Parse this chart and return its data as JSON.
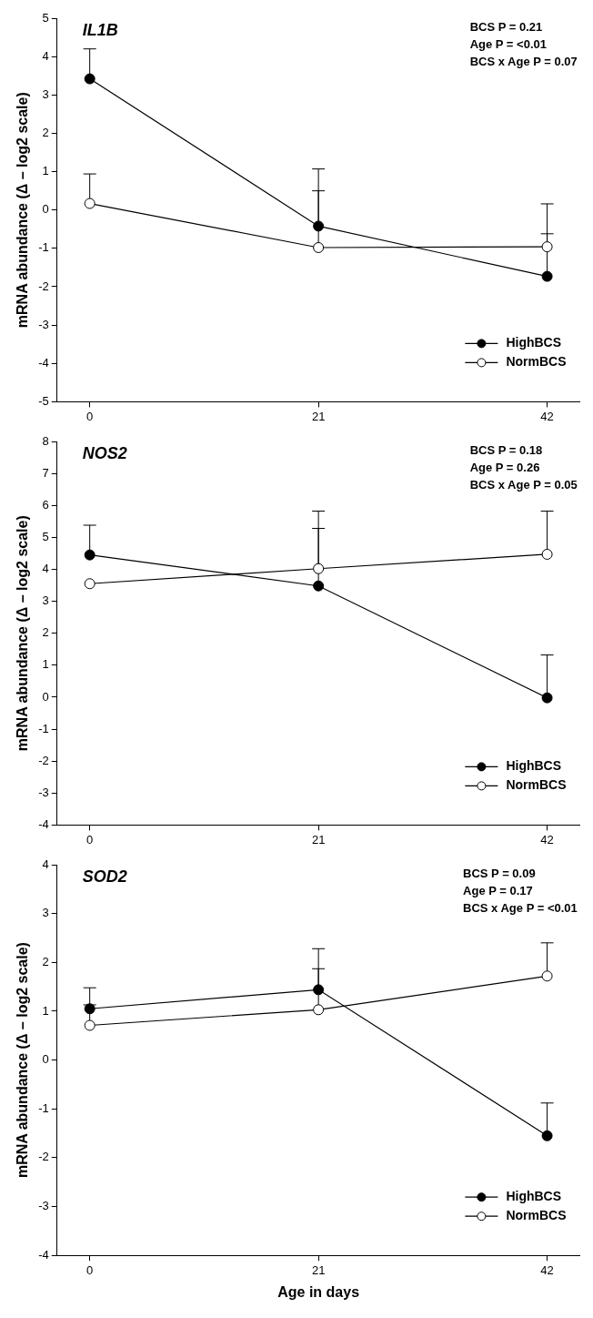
{
  "chart_data": [
    {
      "type": "line",
      "title": "IL1B",
      "ylabel": "mRNA abundance (Δ – log2 scale)",
      "x": [
        0,
        21,
        42
      ],
      "xlim": [
        -3,
        45
      ],
      "xticks": [
        0,
        21,
        42
      ],
      "ylim": [
        -5,
        5
      ],
      "yticks": [
        -5,
        -4,
        -3,
        -2,
        -1,
        0,
        1,
        2,
        3,
        4,
        5
      ],
      "grid": false,
      "legend": "bottom right",
      "marker": "circle",
      "annotations": [
        "BCS P = 0.21",
        "Age P = <0.01",
        "BCS x Age P = 0.07"
      ],
      "series": [
        {
          "name": "HighBCS",
          "color": "#000000",
          "values": [
            3.42,
            -0.42,
            -1.73
          ],
          "errors": [
            [
              3.42,
              4.2
            ],
            [
              -0.42,
              0.5
            ],
            [
              -1.73,
              -0.62
            ]
          ]
        },
        {
          "name": "NormBCS",
          "color": "#ffffff",
          "values": [
            0.17,
            -0.98,
            -0.96
          ],
          "errors": [
            [
              0.17,
              0.94
            ],
            [
              -0.98,
              1.07
            ],
            [
              -0.96,
              0.16
            ]
          ]
        }
      ]
    },
    {
      "type": "line",
      "title": "NOS2",
      "ylabel": "mRNA abundance (Δ – log2 scale)",
      "x": [
        0,
        21,
        42
      ],
      "xlim": [
        -3,
        45
      ],
      "xticks": [
        0,
        21,
        42
      ],
      "ylim": [
        -4,
        8
      ],
      "yticks": [
        -4,
        -3,
        -2,
        -1,
        0,
        1,
        2,
        3,
        4,
        5,
        6,
        7,
        8
      ],
      "grid": false,
      "legend": "bottom right",
      "marker": "circle",
      "annotations": [
        "BCS P = 0.18",
        "Age P = 0.26",
        "BCS x Age P = 0.05"
      ],
      "series": [
        {
          "name": "HighBCS",
          "color": "#000000",
          "values": [
            4.45,
            3.48,
            -0.02
          ],
          "errors": [
            [
              4.45,
              5.38
            ],
            [
              3.48,
              5.28
            ],
            [
              -0.02,
              1.32
            ]
          ]
        },
        {
          "name": "NormBCS",
          "color": "#ffffff",
          "values": [
            3.55,
            4.02,
            4.47
          ],
          "errors": [
            null,
            [
              4.02,
              5.82
            ],
            [
              4.47,
              5.82
            ]
          ]
        }
      ]
    },
    {
      "type": "line",
      "title": "SOD2",
      "xlabel": "Age in days",
      "ylabel": "mRNA abundance (Δ – log2 scale)",
      "x": [
        0,
        21,
        42
      ],
      "xlim": [
        -3,
        45
      ],
      "xticks": [
        0,
        21,
        42
      ],
      "ylim": [
        -4,
        4
      ],
      "yticks": [
        -4,
        -3,
        -2,
        -1,
        0,
        1,
        2,
        3,
        4
      ],
      "grid": false,
      "legend": "bottom right",
      "marker": "circle",
      "annotations": [
        "BCS P = 0.09",
        "Age P = 0.17",
        "BCS x Age P = <0.01"
      ],
      "series": [
        {
          "name": "HighBCS",
          "color": "#000000",
          "values": [
            1.05,
            1.44,
            -1.55
          ],
          "errors": [
            [
              1.05,
              1.48
            ],
            [
              1.44,
              2.28
            ],
            [
              -1.55,
              -0.88
            ]
          ]
        },
        {
          "name": "NormBCS",
          "color": "#ffffff",
          "values": [
            0.71,
            1.03,
            1.72
          ],
          "errors": [
            [
              0.71,
              1.13
            ],
            [
              1.03,
              1.87
            ],
            [
              1.72,
              2.4
            ]
          ]
        }
      ]
    }
  ]
}
